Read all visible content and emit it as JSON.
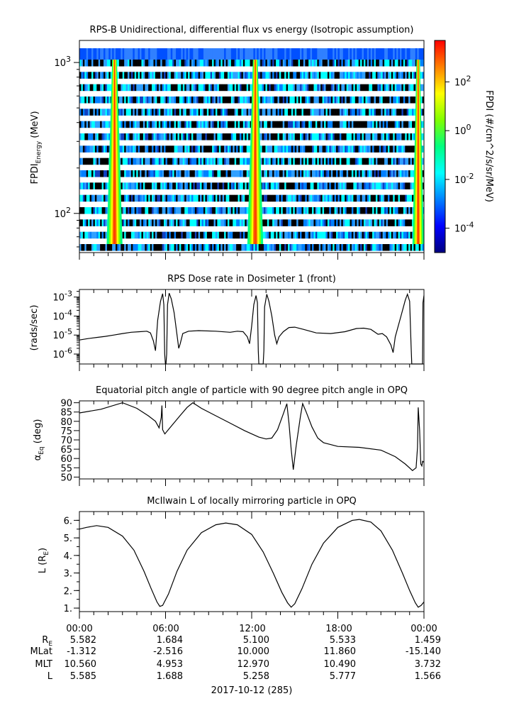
{
  "date_label": "2017-10-12 (285)",
  "ephemeris": {
    "row_labels": [
      {
        "main": "R",
        "sub": "E"
      },
      {
        "main": "MLat",
        "sub": ""
      },
      {
        "main": "MLT",
        "sub": ""
      },
      {
        "main": "L",
        "sub": ""
      }
    ],
    "times": [
      "00:00",
      "06:00",
      "12:00",
      "18:00",
      "00:00"
    ],
    "rows": [
      [
        "5.582",
        "1.684",
        "5.100",
        "5.533",
        "1.459"
      ],
      [
        "-1.312",
        "-2.516",
        "10.000",
        "11.860",
        "-15.140"
      ],
      [
        "10.560",
        "4.953",
        "12.970",
        "10.490",
        "3.732"
      ],
      [
        "5.585",
        "1.688",
        "5.258",
        "5.777",
        "1.566"
      ]
    ]
  },
  "chart_data": [
    {
      "type": "heatmap",
      "title": "RPS-B  Unidirectional, differential flux vs energy (Isotropic assumption)",
      "ylabel_main": "FPDI",
      "ylabel_sub": "Energy",
      "ylabel_unit": "(MeV)",
      "yscale": "log",
      "ylim": [
        55,
        1400
      ],
      "yticks": [
        {
          "base": "10",
          "exp": "2",
          "value": 100
        },
        {
          "base": "10",
          "exp": "3",
          "value": 1000
        }
      ],
      "x_hours": [
        0,
        24
      ],
      "high_flux_bands_hours": [
        [
          1.9,
          3.0
        ],
        [
          11.7,
          12.8
        ],
        [
          23.2,
          24.0
        ]
      ],
      "colorbar": {
        "label": "FPDI (#/cm^2/s/sr/MeV)",
        "scale": "log",
        "range": [
          1e-05,
          5000
        ],
        "ticks": [
          {
            "base": "10",
            "exp": "2"
          },
          {
            "base": "10",
            "exp": "0"
          },
          {
            "base": "10",
            "exp": "-2"
          },
          {
            "base": "10",
            "exp": "-4"
          }
        ],
        "colors": [
          "#00007f",
          "#0000ff",
          "#0080ff",
          "#00ffff",
          "#00ff80",
          "#80ff00",
          "#ffff00",
          "#ff8000",
          "#ff0000"
        ]
      }
    },
    {
      "type": "line",
      "title": "RPS  Dose rate in Dosimeter 1 (front)",
      "ylabel": "(rads/sec)",
      "yscale": "log",
      "ylim": [
        3e-07,
        0.0025
      ],
      "yticks": [
        {
          "base": "10",
          "exp": "-3"
        },
        {
          "base": "10",
          "exp": "-4"
        },
        {
          "base": "10",
          "exp": "-5"
        },
        {
          "base": "10",
          "exp": "-6"
        }
      ],
      "x_hours": [
        0,
        24
      ],
      "points": [
        [
          0,
          5.5e-06
        ],
        [
          0.6,
          6.5e-06
        ],
        [
          1.2,
          7.5e-06
        ],
        [
          1.8,
          8.5e-06
        ],
        [
          2.4,
          1e-05
        ],
        [
          3.0,
          1.2e-05
        ],
        [
          3.6,
          1.4e-05
        ],
        [
          4.2,
          1.5e-05
        ],
        [
          4.7,
          1.6e-05
        ],
        [
          4.95,
          1.3e-05
        ],
        [
          5.15,
          5e-06
        ],
        [
          5.3,
          1.5e-06
        ],
        [
          5.45,
          6e-05
        ],
        [
          5.65,
          0.0006
        ],
        [
          5.8,
          0.0015
        ],
        [
          5.88,
          0.0004
        ],
        [
          5.94,
          1e-06
        ],
        [
          5.99,
          3e-07
        ],
        [
          6.03,
          3e-07
        ],
        [
          6.08,
          1e-06
        ],
        [
          6.14,
          0.0004
        ],
        [
          6.25,
          0.0016
        ],
        [
          6.4,
          0.0008
        ],
        [
          6.6,
          0.00015
        ],
        [
          6.8,
          1e-05
        ],
        [
          6.92,
          2e-06
        ],
        [
          7.02,
          3.5e-06
        ],
        [
          7.2,
          1.2e-05
        ],
        [
          7.6,
          1.6e-05
        ],
        [
          8.3,
          1.7e-05
        ],
        [
          9.5,
          1.6e-05
        ],
        [
          10.5,
          1.4e-05
        ],
        [
          11.0,
          1.6e-05
        ],
        [
          11.4,
          1.5e-05
        ],
        [
          11.7,
          8e-06
        ],
        [
          11.85,
          3.5e-06
        ],
        [
          12.0,
          3e-05
        ],
        [
          12.15,
          0.0004
        ],
        [
          12.3,
          0.0012
        ],
        [
          12.4,
          0.0005
        ],
        [
          12.46,
          1.5e-06
        ],
        [
          12.5,
          3e-07
        ],
        [
          12.8,
          3e-07
        ],
        [
          12.85,
          1.5e-06
        ],
        [
          12.9,
          0.0003
        ],
        [
          13.05,
          0.0014
        ],
        [
          13.2,
          0.0006
        ],
        [
          13.4,
          0.0001
        ],
        [
          13.6,
          1e-05
        ],
        [
          13.75,
          3.5e-06
        ],
        [
          13.9,
          8e-06
        ],
        [
          14.2,
          1.5e-05
        ],
        [
          14.6,
          2.5e-05
        ],
        [
          15.0,
          2.6e-05
        ],
        [
          15.6,
          2e-05
        ],
        [
          16.5,
          1.3e-05
        ],
        [
          17.5,
          1.2e-05
        ],
        [
          18.5,
          1.5e-05
        ],
        [
          19.3,
          2.2e-05
        ],
        [
          19.8,
          2.3e-05
        ],
        [
          20.3,
          2e-05
        ],
        [
          20.8,
          1.1e-05
        ],
        [
          21.1,
          1.2e-05
        ],
        [
          21.4,
          8e-06
        ],
        [
          21.7,
          3e-06
        ],
        [
          21.85,
          1.2e-06
        ],
        [
          22.0,
          8e-06
        ],
        [
          22.4,
          0.0001
        ],
        [
          22.7,
          0.0007
        ],
        [
          22.85,
          0.0014
        ],
        [
          23.0,
          0.0006
        ],
        [
          23.1,
          3e-06
        ],
        [
          23.15,
          3e-07
        ],
        [
          23.9,
          3e-07
        ],
        [
          23.93,
          0.0005
        ],
        [
          24.0,
          0.0012
        ]
      ]
    },
    {
      "type": "line",
      "title": "Equatorial pitch angle of particle with 90 degree pitch angle in OPQ",
      "ylabel_main": "α",
      "ylabel_sub": "Eq",
      "ylabel_unit": "(deg)",
      "ylim": [
        49,
        91
      ],
      "yticks": [
        90,
        85,
        80,
        75,
        70,
        65,
        60,
        55,
        50
      ],
      "x_hours": [
        0,
        24
      ],
      "points": [
        [
          0,
          84.5
        ],
        [
          1.5,
          86.5
        ],
        [
          3.0,
          90
        ],
        [
          4.0,
          87
        ],
        [
          4.8,
          83
        ],
        [
          5.3,
          80
        ],
        [
          5.55,
          76.5
        ],
        [
          5.7,
          82
        ],
        [
          5.75,
          88.5
        ],
        [
          5.8,
          75.5
        ],
        [
          5.95,
          73.2
        ],
        [
          6.3,
          76.5
        ],
        [
          7.0,
          83
        ],
        [
          7.5,
          87.5
        ],
        [
          7.9,
          90
        ],
        [
          8.5,
          87
        ],
        [
          9.5,
          83
        ],
        [
          10.5,
          79
        ],
        [
          11.5,
          75
        ],
        [
          12.5,
          71.5
        ],
        [
          13.0,
          70.5
        ],
        [
          13.4,
          71
        ],
        [
          13.8,
          75.5
        ],
        [
          14.2,
          84
        ],
        [
          14.45,
          89.5
        ],
        [
          14.6,
          79
        ],
        [
          14.75,
          65
        ],
        [
          14.9,
          54
        ],
        [
          15.1,
          67
        ],
        [
          15.4,
          83
        ],
        [
          15.55,
          89.5
        ],
        [
          15.8,
          85
        ],
        [
          16.2,
          77
        ],
        [
          16.6,
          71
        ],
        [
          17.0,
          68.5
        ],
        [
          18.0,
          66.5
        ],
        [
          19.5,
          66
        ],
        [
          21.0,
          64.5
        ],
        [
          22.0,
          61
        ],
        [
          22.7,
          57
        ],
        [
          23.2,
          53.5
        ],
        [
          23.45,
          55
        ],
        [
          23.55,
          66
        ],
        [
          23.6,
          87.5
        ],
        [
          23.7,
          75
        ],
        [
          23.78,
          57
        ],
        [
          23.85,
          56
        ],
        [
          23.9,
          58.5
        ],
        [
          24.0,
          58
        ]
      ]
    },
    {
      "type": "line",
      "title": "McIlwain L of locally mirroring particle in OPQ",
      "ylabel_main": "L (R",
      "ylabel_sub": "E",
      "ylabel_unit": ")",
      "ylim": [
        0.8,
        6.5
      ],
      "yticks": [
        6,
        5,
        4,
        3,
        2,
        1
      ],
      "x_hours": [
        0,
        24
      ],
      "points": [
        [
          0,
          5.5
        ],
        [
          0.5,
          5.6
        ],
        [
          1.2,
          5.7
        ],
        [
          2.0,
          5.6
        ],
        [
          3.0,
          5.1
        ],
        [
          3.8,
          4.3
        ],
        [
          4.5,
          3.1
        ],
        [
          5.0,
          2.1
        ],
        [
          5.4,
          1.35
        ],
        [
          5.6,
          1.1
        ],
        [
          5.8,
          1.15
        ],
        [
          6.2,
          1.8
        ],
        [
          6.8,
          3.1
        ],
        [
          7.5,
          4.3
        ],
        [
          8.5,
          5.3
        ],
        [
          9.5,
          5.75
        ],
        [
          10.2,
          5.85
        ],
        [
          11.0,
          5.75
        ],
        [
          12.0,
          5.2
        ],
        [
          12.8,
          4.2
        ],
        [
          13.5,
          3.0
        ],
        [
          14.1,
          1.9
        ],
        [
          14.5,
          1.3
        ],
        [
          14.75,
          1.05
        ],
        [
          15.0,
          1.25
        ],
        [
          15.5,
          2.1
        ],
        [
          16.2,
          3.5
        ],
        [
          17.0,
          4.7
        ],
        [
          18.0,
          5.6
        ],
        [
          19.0,
          6.0
        ],
        [
          19.5,
          6.05
        ],
        [
          20.3,
          5.9
        ],
        [
          21.0,
          5.4
        ],
        [
          21.8,
          4.3
        ],
        [
          22.5,
          3.0
        ],
        [
          23.0,
          2.0
        ],
        [
          23.4,
          1.3
        ],
        [
          23.6,
          1.05
        ],
        [
          23.8,
          1.15
        ],
        [
          24.0,
          1.35
        ]
      ]
    }
  ]
}
